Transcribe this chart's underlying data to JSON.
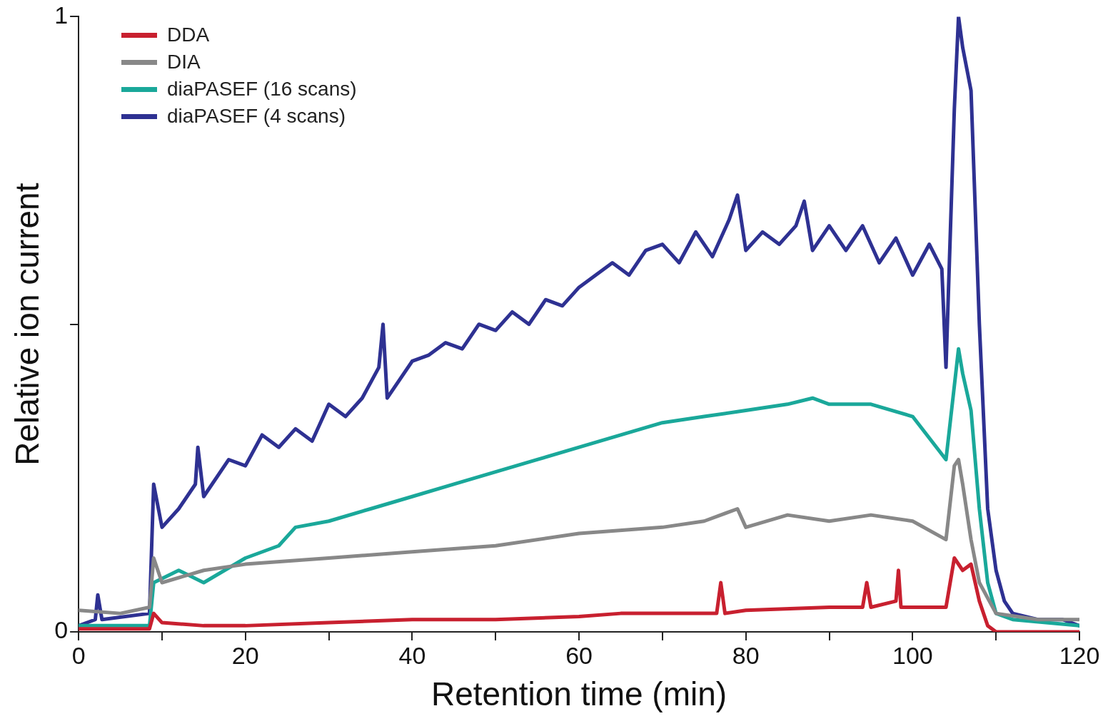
{
  "chart_data": {
    "type": "line",
    "xlabel": "Retention time (min)",
    "ylabel": "Relative ion current",
    "xlim": [
      0,
      120
    ],
    "xticks": [
      0,
      {
        "value": 10,
        "label": null
      },
      20,
      {
        "value": 30,
        "label": null
      },
      40,
      {
        "value": 50,
        "label": null
      },
      60,
      {
        "value": 70,
        "label": null
      },
      80,
      {
        "value": 90,
        "label": null
      },
      100,
      {
        "value": 110,
        "label": null
      },
      120
    ],
    "ylim": [
      0,
      1
    ],
    "yticks": [
      0,
      {
        "value": 0.5,
        "label": null
      },
      1
    ],
    "grid": false,
    "legend": "top left",
    "marker": "none",
    "line_style": "solid",
    "series": [
      {
        "name": "DDA",
        "color": "#c8202f",
        "x": [
          0,
          8.5,
          9,
          10,
          15,
          20,
          30,
          40,
          50,
          60,
          65,
          70,
          76.5,
          77,
          77.5,
          80,
          90,
          94,
          94.5,
          95,
          98,
          98.3,
          98.6,
          104,
          105,
          106,
          107,
          108,
          109,
          110,
          120
        ],
        "values": [
          0.005,
          0.005,
          0.03,
          0.015,
          0.01,
          0.01,
          0.015,
          0.02,
          0.02,
          0.025,
          0.03,
          0.03,
          0.03,
          0.08,
          0.03,
          0.035,
          0.04,
          0.04,
          0.08,
          0.04,
          0.05,
          0.1,
          0.04,
          0.04,
          0.12,
          0.1,
          0.11,
          0.05,
          0.01,
          0,
          0
        ]
      },
      {
        "name": "DIA",
        "color": "#888888",
        "x": [
          0,
          5,
          8.5,
          9,
          10,
          15,
          20,
          30,
          40,
          50,
          60,
          70,
          75,
          79,
          80,
          85,
          90,
          95,
          100,
          104,
          105,
          105.5,
          106,
          107,
          108,
          110,
          115,
          120
        ],
        "values": [
          0.035,
          0.03,
          0.04,
          0.12,
          0.08,
          0.1,
          0.11,
          0.12,
          0.13,
          0.14,
          0.16,
          0.17,
          0.18,
          0.2,
          0.17,
          0.19,
          0.18,
          0.19,
          0.18,
          0.15,
          0.27,
          0.28,
          0.24,
          0.15,
          0.08,
          0.03,
          0.02,
          0.02
        ]
      },
      {
        "name": "diaPASEF (16 scans)",
        "color": "#1aa89a",
        "x": [
          0,
          8.5,
          9,
          12,
          15,
          20,
          24,
          26,
          30,
          35,
          40,
          45,
          50,
          55,
          60,
          65,
          70,
          75,
          80,
          85,
          88,
          90,
          95,
          100,
          104,
          105,
          105.5,
          106,
          107,
          108,
          109,
          110,
          112,
          120
        ],
        "values": [
          0.01,
          0.01,
          0.08,
          0.1,
          0.08,
          0.12,
          0.14,
          0.17,
          0.18,
          0.2,
          0.22,
          0.24,
          0.26,
          0.28,
          0.3,
          0.32,
          0.34,
          0.35,
          0.36,
          0.37,
          0.38,
          0.37,
          0.37,
          0.35,
          0.28,
          0.4,
          0.46,
          0.42,
          0.36,
          0.2,
          0.08,
          0.03,
          0.02,
          0.01
        ]
      },
      {
        "name": "diaPASEF (4 scans)",
        "color": "#2e3192",
        "x": [
          0,
          2,
          2.3,
          2.8,
          8.5,
          9,
          10,
          12,
          14,
          14.3,
          15,
          18,
          20,
          22,
          24,
          26,
          28,
          30,
          32,
          34,
          36,
          36.5,
          37,
          40,
          42,
          44,
          46,
          48,
          50,
          52,
          54,
          56,
          58,
          60,
          62,
          64,
          66,
          68,
          70,
          72,
          74,
          76,
          78,
          79,
          80,
          82,
          84,
          86,
          87,
          88,
          90,
          92,
          94,
          96,
          98,
          100,
          102,
          103.5,
          104,
          105,
          105.5,
          106,
          107,
          108,
          109,
          110,
          111,
          112,
          115,
          118,
          120
        ],
        "values": [
          0.01,
          0.02,
          0.06,
          0.02,
          0.03,
          0.24,
          0.17,
          0.2,
          0.24,
          0.3,
          0.22,
          0.28,
          0.27,
          0.32,
          0.3,
          0.33,
          0.31,
          0.37,
          0.35,
          0.38,
          0.43,
          0.5,
          0.38,
          0.44,
          0.45,
          0.47,
          0.46,
          0.5,
          0.49,
          0.52,
          0.5,
          0.54,
          0.53,
          0.56,
          0.58,
          0.6,
          0.58,
          0.62,
          0.63,
          0.6,
          0.65,
          0.61,
          0.67,
          0.71,
          0.62,
          0.65,
          0.63,
          0.66,
          0.7,
          0.62,
          0.66,
          0.62,
          0.66,
          0.6,
          0.64,
          0.58,
          0.63,
          0.59,
          0.43,
          0.85,
          1.0,
          0.95,
          0.88,
          0.5,
          0.2,
          0.1,
          0.05,
          0.03,
          0.02,
          0.02,
          0.01
        ]
      }
    ]
  }
}
